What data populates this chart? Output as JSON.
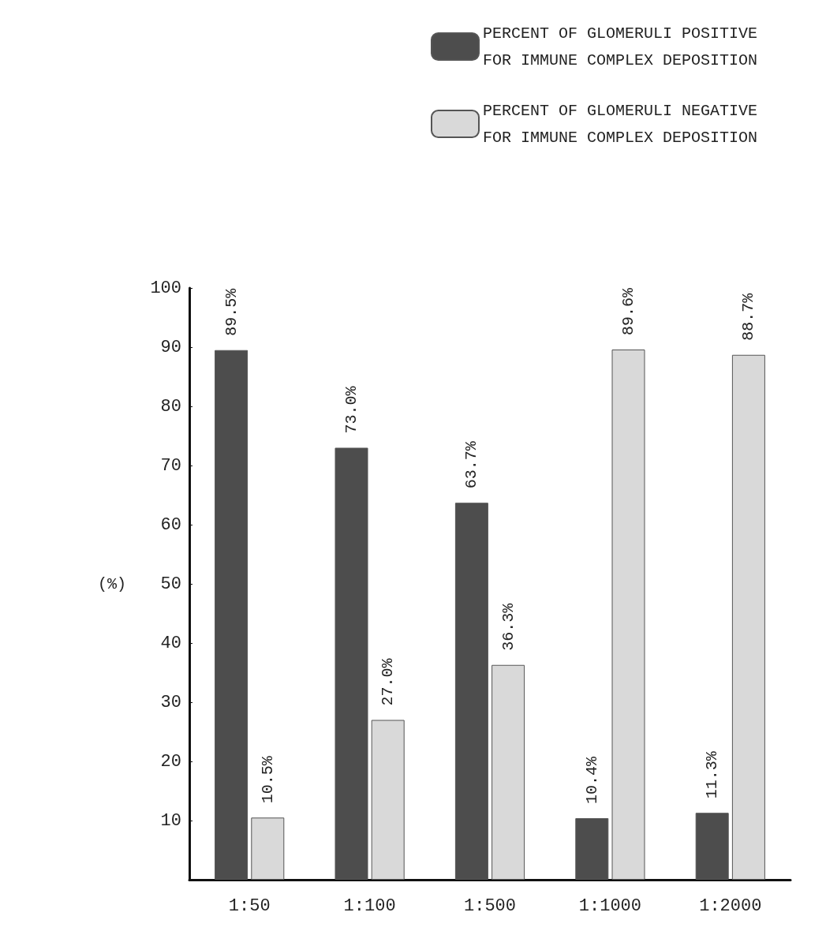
{
  "chart_data": {
    "type": "bar",
    "ylabel": "(%)",
    "categories": [
      "1:50",
      "1:100",
      "1:500",
      "1:1000",
      "1:2000"
    ],
    "series": [
      {
        "name": "PERCENT OF GLOMERULI POSITIVE FOR IMMUNE COMPLEX DEPOSITION",
        "color": "#4d4d4d",
        "values": [
          89.5,
          73.0,
          63.7,
          10.4,
          11.3
        ],
        "value_labels": [
          "89.5%",
          "73.0%",
          "63.7%",
          "10.4%",
          "11.3%"
        ]
      },
      {
        "name": "PERCENT OF GLOMERULI NEGATIVE FOR IMMUNE COMPLEX DEPOSITION",
        "color": "#d9d9d9",
        "values": [
          10.5,
          27.0,
          36.3,
          89.6,
          88.7
        ],
        "value_labels": [
          "10.5%",
          "27.0%",
          "36.3%",
          "89.6%",
          "88.7%"
        ]
      }
    ],
    "ylim": [
      0,
      100
    ],
    "yticks": [
      10,
      20,
      30,
      40,
      50,
      60,
      70,
      80,
      90,
      100
    ],
    "grid": false,
    "legend": "top right"
  }
}
